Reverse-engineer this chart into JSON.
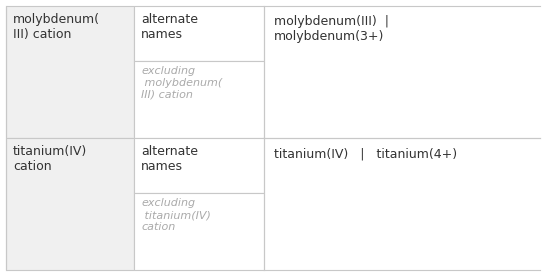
{
  "bg_color": "#ffffff",
  "border_color": "#c8c8c8",
  "rows": [
    {
      "col1_text": "molybdenum(\nIII) cation",
      "col2_top_text": "alternate\nnames",
      "col2_bot_text": "excluding\n molybdenum(\nIII) cation",
      "col3_text": "molybdenum(III)  |\nmolybdenum(3+)"
    },
    {
      "col1_text": "titanium(IV)\ncation",
      "col2_top_text": "alternate\nnames",
      "col2_bot_text": "excluding\n titanium(IV)\ncation",
      "col3_text": "titanium(IV)   |   titanium(4+)"
    }
  ],
  "col1_bg": "#f0f0f0",
  "col2_bg": "#ffffff",
  "col3_bg": "#ffffff",
  "text_dark": "#333333",
  "text_light": "#aaaaaa",
  "font_size_main": 9,
  "font_size_small": 8,
  "fig_w": 5.46,
  "fig_h": 2.76,
  "dpi": 100
}
